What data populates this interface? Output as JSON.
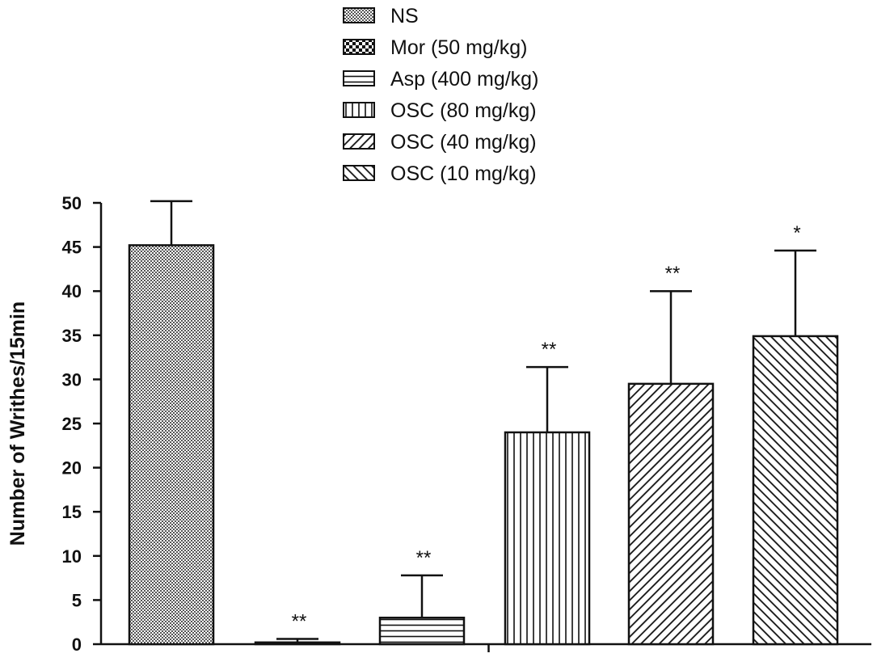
{
  "chart_data": {
    "type": "bar",
    "title": "",
    "xlabel": "",
    "ylabel": "Number of Writhes/15min",
    "ylim": [
      0,
      50
    ],
    "yticks": [
      0,
      5,
      10,
      15,
      20,
      25,
      30,
      35,
      40,
      45,
      50
    ],
    "grid": false,
    "legend_position": "top-center",
    "categories": [
      "NS",
      "Mor (50 mg/kg)",
      "Asp (400 mg/kg)",
      "OSC (80 mg/kg)",
      "OSC (40 mg/kg)",
      "OSC (10 mg/kg)"
    ],
    "values": [
      45.2,
      0.2,
      3.0,
      24.0,
      29.5,
      34.9
    ],
    "errors": [
      5.0,
      0.4,
      4.8,
      7.4,
      10.5,
      9.7
    ],
    "significance": [
      "",
      "**",
      "**",
      "**",
      "**",
      "*"
    ],
    "patterns": [
      "dots",
      "checker",
      "hlines",
      "vlines",
      "diag-forward",
      "diag-back"
    ]
  }
}
